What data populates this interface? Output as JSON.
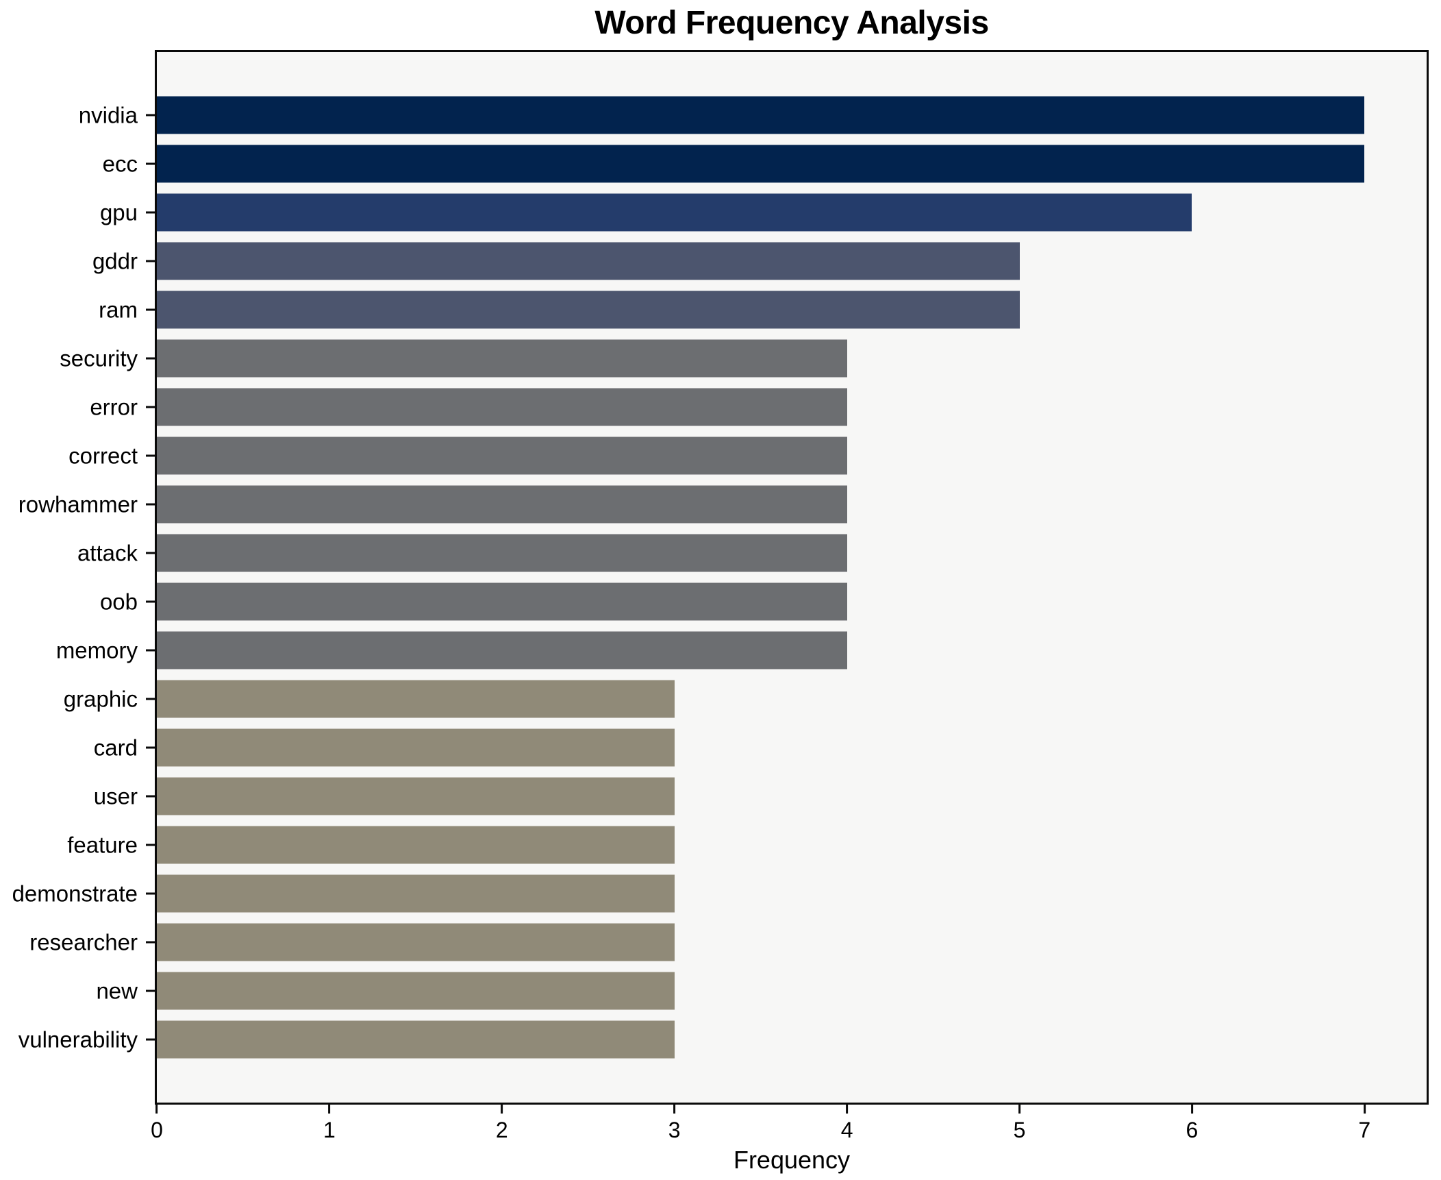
{
  "chart_data": {
    "type": "bar",
    "orientation": "horizontal",
    "title": "Word Frequency Analysis",
    "xlabel": "Frequency",
    "ylabel": "",
    "categories": [
      "nvidia",
      "ecc",
      "gpu",
      "gddr",
      "ram",
      "security",
      "error",
      "correct",
      "rowhammer",
      "attack",
      "oob",
      "memory",
      "graphic",
      "card",
      "user",
      "feature",
      "demonstrate",
      "researcher",
      "new",
      "vulnerability"
    ],
    "values": [
      7,
      7,
      6,
      5,
      5,
      4,
      4,
      4,
      4,
      4,
      4,
      4,
      3,
      3,
      3,
      3,
      3,
      3,
      3,
      3
    ],
    "bar_colors": [
      "#02234E",
      "#02234E",
      "#243C6B",
      "#4C556E",
      "#4C556E",
      "#6C6E71",
      "#6C6E71",
      "#6C6E71",
      "#6C6E71",
      "#6C6E71",
      "#6C6E71",
      "#6C6E71",
      "#908A78",
      "#908A78",
      "#908A78",
      "#908A78",
      "#908A78",
      "#908A78",
      "#908A78",
      "#908A78"
    ],
    "xticks": [
      0,
      1,
      2,
      3,
      4,
      5,
      6,
      7
    ],
    "xlim": [
      0,
      7.36
    ],
    "grid": false,
    "legend_position": "none",
    "colors": {
      "plot_background": "#F7F7F6",
      "figure_background": "#FFFFFF",
      "axis_line": "#0A0A0A",
      "text": "#000000"
    }
  }
}
